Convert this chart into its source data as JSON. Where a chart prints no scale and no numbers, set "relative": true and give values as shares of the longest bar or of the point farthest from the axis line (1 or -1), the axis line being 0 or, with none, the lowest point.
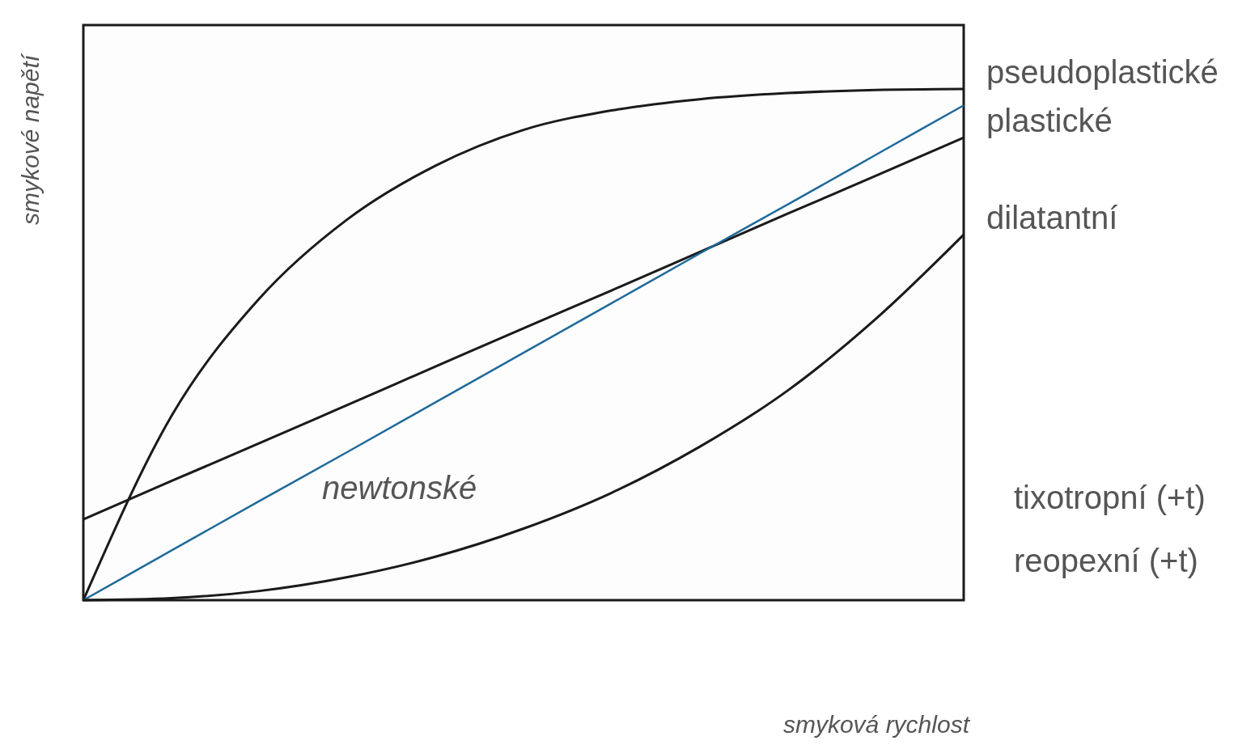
{
  "chart_data": {
    "type": "line",
    "relative": true,
    "xlabel": "smyková rychlost",
    "ylabel": "smykové napětí",
    "categories": [
      null,
      null,
      null,
      null,
      null,
      null,
      null,
      null,
      null,
      null,
      null
    ],
    "series": [
      {
        "name": "pseudoplastické",
        "color": "#1a1a1a",
        "values": [
          0,
          0.36,
          0.59,
          0.745,
          0.85,
          0.92,
          0.958,
          0.98,
          0.992,
          0.998,
          1
        ]
      },
      {
        "name": "plastické",
        "color": "#1a1a1a",
        "values": [
          0.158,
          0.233,
          0.307,
          0.382,
          0.457,
          0.532,
          0.606,
          0.681,
          0.756,
          0.83,
          0.905
        ]
      },
      {
        "color": "#1f6a9a",
        "values": [
          0,
          0.097,
          0.194,
          0.29,
          0.387,
          0.484,
          0.581,
          0.678,
          0.774,
          0.871,
          0.968
        ]
      },
      {
        "name": "dilatantní",
        "color": "#1a1a1a",
        "values": [
          0,
          0.004,
          0.018,
          0.045,
          0.085,
          0.14,
          0.21,
          0.3,
          0.41,
          0.55,
          0.715
        ]
      }
    ],
    "annotations": [
      "newtonské",
      "tixotropní (+t)",
      "reopexní (+t)"
    ]
  }
}
